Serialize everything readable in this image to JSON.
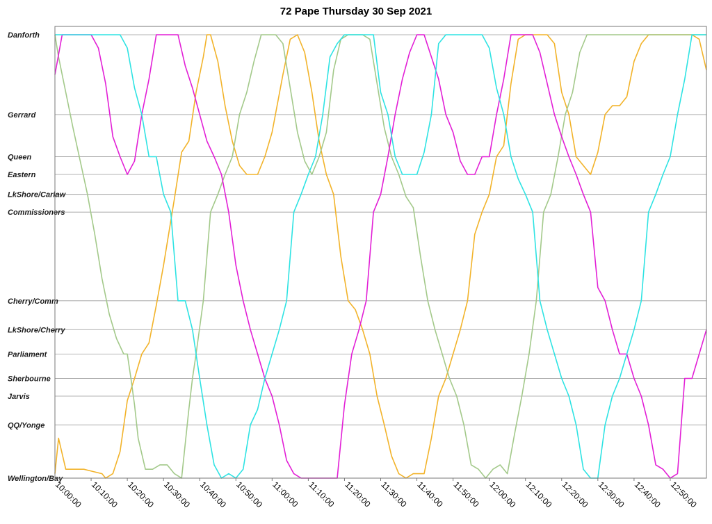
{
  "chart_data": {
    "type": "line",
    "title": "72 Pape Thursday 30 Sep 2021",
    "xlabel": "",
    "ylabel": "",
    "x_range_minutes_since_10": [
      0,
      180
    ],
    "x_ticks": [
      "10:00:00",
      "10:10:00",
      "10:20:00",
      "10:30:00",
      "10:40:00",
      "10:50:00",
      "11:00:00",
      "11:10:00",
      "11:20:00",
      "11:30:00",
      "11:40:00",
      "11:50:00",
      "12:00:00",
      "12:10:00",
      "12:20:00",
      "12:30:00",
      "12:40:00",
      "12:50:00"
    ],
    "stops": [
      {
        "name": "Danforth",
        "km": 0.0
      },
      {
        "name": "Gerrard",
        "km": 1.8
      },
      {
        "name": "Queen",
        "km": 2.75
      },
      {
        "name": "Eastern",
        "km": 3.15
      },
      {
        "name": "LkShore/Carlaw",
        "km": 3.6
      },
      {
        "name": "Commissioners",
        "km": 4.0
      },
      {
        "name": "Cherry/Comm",
        "km": 6.0
      },
      {
        "name": "LkShore/Cherry",
        "km": 6.65
      },
      {
        "name": "Parliament",
        "km": 7.2
      },
      {
        "name": "Sherbourne",
        "km": 7.75
      },
      {
        "name": "Jarvis",
        "km": 8.15
      },
      {
        "name": "QQ/Yonge",
        "km": 8.8
      },
      {
        "name": "Wellington/Bay",
        "km": 10.0
      }
    ],
    "grid": true,
    "legend": "none",
    "series": [
      {
        "color": "#f2b32a",
        "x": [
          "10:00",
          "10:01",
          "10:03",
          "10:08",
          "10:13",
          "10:14",
          "10:16",
          "10:18",
          "10:20",
          "10:22",
          "10:24",
          "10:26",
          "10:28",
          "10:30",
          "10:32",
          "10:33",
          "10:35",
          "10:37",
          "10:39",
          "10:41",
          "10:42",
          "10:43",
          "10:45",
          "10:47",
          "10:49",
          "10:51",
          "10:53",
          "10:56",
          "10:58",
          "11:00",
          "11:03",
          "11:05",
          "11:07",
          "11:09",
          "11:11",
          "11:13",
          "11:15",
          "11:17",
          "11:19",
          "11:21",
          "11:23",
          "11:25",
          "11:27",
          "11:29",
          "11:31",
          "11:33",
          "11:35",
          "11:37",
          "11:39",
          "11:42",
          "11:44",
          "11:46",
          "11:48",
          "11:50",
          "11:52",
          "11:54",
          "11:56",
          "11:58",
          "12:00",
          "12:02",
          "12:04",
          "12:06",
          "12:08",
          "12:10",
          "12:12",
          "12:14",
          "12:16",
          "12:18",
          "12:20",
          "12:22",
          "12:24",
          "12:26",
          "12:28",
          "12:30",
          "12:32",
          "12:34",
          "12:36",
          "12:38",
          "12:40",
          "12:42",
          "12:44",
          "12:46",
          "12:48",
          "12:50",
          "12:52",
          "12:54",
          "12:56",
          "12:58",
          "13:00"
        ],
        "y": [
          "Wellington/Bay -0.1",
          "QQ/Yonge +0.3",
          "Wellington/Bay -0.2",
          "Wellington/Bay -0.2",
          "Wellington/Bay -0.1",
          "Wellington/Bay",
          "Wellington/Bay -0.1",
          "QQ/Yonge +0.6",
          "Jarvis +0.1",
          "Sherbourne",
          "Parliament",
          "LkShore/Cherry +0.3",
          "Cherry/Comm +0.1",
          "Commissioners +1.2",
          "Commissioners +0.2",
          "LkShore/Carlaw +0.1",
          "Eastern -0.5",
          "Gerrard +0.6",
          "Gerrard -0.5",
          "Danforth +0.5",
          "Danforth",
          "Danforth",
          "Danforth +0.6",
          "Gerrard -0.2",
          "Gerrard +0.6",
          "Queen +0.2",
          "Eastern",
          "Eastern",
          "Queen",
          "Gerrard +0.4",
          "Danforth +0.9",
          "Danforth +0.1",
          "Danforth",
          "Danforth +0.4",
          "Gerrard -0.5",
          "Gerrard +0.6",
          "Queen +0.4",
          "LkShore/Carlaw",
          "Commissioners +1.0",
          "Cherry/Comm",
          "Cherry/Comm +0.2",
          "LkShore/Cherry",
          "Parliament",
          "Jarvis",
          "QQ/Yonge",
          "Wellington/Bay -0.5",
          "Wellington/Bay -0.1",
          "Wellington/Bay",
          "Wellington/Bay -0.1",
          "Wellington/Bay -0.1",
          "QQ/Yonge +0.3",
          "Jarvis",
          "Sherbourne",
          "Parliament",
          "LkShore/Cherry",
          "Cherry/Comm",
          "Commissioners +0.5",
          "Commissioners",
          "LkShore/Carlaw",
          "Queen",
          "Gerrard +0.7",
          "Gerrard -0.7",
          "Danforth +0.1",
          "Danforth",
          "Danforth",
          "Danforth",
          "Danforth",
          "Danforth +0.2",
          "Gerrard -0.5",
          "Gerrard",
          "Queen",
          "Queen +0.2",
          "Eastern",
          "Queen -0.1",
          "Gerrard",
          "Gerrard -0.2",
          "Gerrard -0.2",
          "Gerrard -0.4",
          "Danforth +0.6",
          "Danforth +0.2",
          "Danforth",
          "Danforth",
          "Danforth",
          "Danforth",
          "Danforth",
          "Danforth",
          "Danforth",
          "Danforth +0.1",
          "Danforth +0.8"
        ]
      },
      {
        "color": "#a3c98a",
        "x": [
          "10:00",
          "10:01",
          "10:03",
          "10:05",
          "10:07",
          "10:09",
          "10:11",
          "10:13",
          "10:15",
          "10:17",
          "10:19",
          "10:20",
          "10:21",
          "10:22",
          "10:23",
          "10:25",
          "10:27",
          "10:29",
          "10:31",
          "10:33",
          "10:35",
          "10:37",
          "10:38",
          "10:39",
          "10:41",
          "10:43",
          "10:45",
          "10:47",
          "10:49",
          "10:51",
          "10:53",
          "10:55",
          "10:57",
          "10:59",
          "11:01",
          "11:03",
          "11:05",
          "11:07",
          "11:09",
          "11:11",
          "11:13",
          "11:15",
          "11:17",
          "11:19",
          "11:21",
          "11:23",
          "11:25",
          "11:27",
          "11:29",
          "11:31",
          "11:33",
          "11:35",
          "11:37",
          "11:39",
          "11:41",
          "11:43",
          "11:45",
          "11:47",
          "11:49",
          "11:51",
          "11:53",
          "11:55",
          "11:57",
          "11:59",
          "12:01",
          "12:03",
          "12:05",
          "12:07",
          "12:09",
          "12:11",
          "12:13",
          "12:15",
          "12:17",
          "12:19",
          "12:21",
          "12:23",
          "12:25",
          "12:27",
          "12:29",
          "12:31",
          "12:33",
          "12:35",
          "12:37",
          "12:39",
          "12:41",
          "12:43",
          "12:45",
          "12:47",
          "12:49",
          "12:51",
          "12:53",
          "12:55",
          "12:57",
          "13:00"
        ],
        "y": [
          "Danforth",
          "Danforth +0.5",
          "Gerrard -0.5",
          "Gerrard +0.3",
          "Queen +0.1",
          "LkShore/Carlaw",
          "Commissioners +0.5",
          "Cherry/Comm -0.5",
          "Cherry/Comm +0.3",
          "LkShore/Cherry +0.2",
          "Parliament",
          "Parliament",
          "Sherbourne",
          "Jarvis +0.2",
          "QQ/Yonge +0.3",
          "Wellington/Bay -0.2",
          "Wellington/Bay -0.2",
          "Wellington/Bay -0.3",
          "Wellington/Bay -0.3",
          "Wellington/Bay -0.1",
          "Wellington/Bay",
          "Jarvis +0.3",
          "Sherbourne",
          "Parliament",
          "Cherry/Comm",
          "Commissioners",
          "LkShore/Carlaw",
          "Eastern",
          "Queen",
          "Gerrard",
          "Gerrard -0.5",
          "Danforth +0.6",
          "Danforth",
          "Danforth",
          "Danforth",
          "Danforth +0.2",
          "Gerrard -0.6",
          "Gerrard +0.4",
          "Queen +0.1",
          "Eastern",
          "Queen",
          "Gerrard +0.4",
          "Danforth +0.8",
          "Danforth +0.1",
          "Danforth",
          "Danforth",
          "Danforth",
          "Danforth +0.1",
          "Gerrard -0.7",
          "Gerrard +0.3",
          "Queen",
          "Eastern",
          "Eastern +0.5",
          "LkShore/Carlaw +0.3",
          "Commissioners +1.0",
          "Cherry/Comm",
          "LkShore/Cherry",
          "Parliament",
          "Sherbourne",
          "Jarvis",
          "QQ/Yonge",
          "Wellington/Bay -0.3",
          "Wellington/Bay -0.2",
          "Wellington/Bay",
          "Wellington/Bay -0.2",
          "Wellington/Bay -0.3",
          "Wellington/Bay -0.1",
          "QQ/Yonge +0.2",
          "Jarvis",
          "Parliament",
          "Cherry/Comm",
          "Commissioners",
          "LkShore/Carlaw",
          "Queen",
          "Gerrard",
          "Gerrard -0.5",
          "Danforth +0.4",
          "Danforth",
          "Danforth",
          "Danforth",
          "Danforth",
          "Danforth",
          "Danforth",
          "Danforth",
          "Danforth",
          "Danforth",
          "Danforth",
          "Danforth",
          "Danforth",
          "Danforth",
          "Danforth",
          "Danforth",
          "Danforth",
          "Danforth"
        ]
      },
      {
        "color": "#e21fd6",
        "x": [
          "10:00",
          "10:02",
          "10:04",
          "10:06",
          "10:08",
          "10:10",
          "10:12",
          "10:14",
          "10:16",
          "10:18",
          "10:20",
          "10:22",
          "10:24",
          "10:26",
          "10:28",
          "10:30",
          "10:32",
          "10:34",
          "10:36",
          "10:38",
          "10:40",
          "10:42",
          "10:44",
          "10:46",
          "10:48",
          "10:50",
          "10:52",
          "10:54",
          "10:56",
          "10:58",
          "11:00",
          "11:02",
          "11:04",
          "11:06",
          "11:08",
          "11:10",
          "11:12",
          "11:14",
          "11:16",
          "11:18",
          "11:20",
          "11:22",
          "11:24",
          "11:26",
          "11:28",
          "11:30",
          "11:32",
          "11:34",
          "11:36",
          "11:38",
          "11:40",
          "11:42",
          "11:44",
          "11:46",
          "11:48",
          "11:50",
          "11:52",
          "11:54",
          "11:56",
          "11:58",
          "12:00",
          "12:02",
          "12:04",
          "12:06",
          "12:08",
          "12:10",
          "12:12",
          "12:14",
          "12:16",
          "12:18",
          "12:20",
          "12:22",
          "12:24",
          "12:26",
          "12:28",
          "12:30",
          "12:32",
          "12:34",
          "12:36",
          "12:38",
          "12:40",
          "12:42",
          "12:44",
          "12:46",
          "12:48",
          "12:50",
          "12:52",
          "12:54",
          "12:56",
          "12:58",
          "13:00"
        ],
        "y": [
          "Danforth +0.9",
          "Danforth",
          "Danforth",
          "Danforth",
          "Danforth",
          "Danforth",
          "Danforth +0.3",
          "Gerrard -0.7",
          "Gerrard +0.5",
          "Queen",
          "Eastern",
          "Queen +0.1",
          "Gerrard",
          "Gerrard -0.8",
          "Danforth",
          "Danforth",
          "Danforth",
          "Danforth",
          "Danforth +0.7",
          "Gerrard -0.6",
          "Gerrard",
          "Gerrard +0.6",
          "Queen",
          "Eastern",
          "Commissioners",
          "Cherry/Comm -0.8",
          "Cherry/Comm",
          "LkShore/Cherry",
          "Parliament",
          "Sherbourne",
          "Jarvis",
          "QQ/Yonge",
          "Wellington/Bay -0.4",
          "Wellington/Bay -0.1",
          "Wellington/Bay",
          "Wellington/Bay",
          "Wellington/Bay",
          "Wellington/Bay",
          "Wellington/Bay",
          "Wellington/Bay",
          "Sherbourne +0.6",
          "Parliament",
          "LkShore/Cherry",
          "Cherry/Comm",
          "Commissioners",
          "LkShore/Carlaw",
          "Queen",
          "Gerrard",
          "Gerrard -0.8",
          "Danforth +0.4",
          "Danforth",
          "Danforth",
          "Danforth +0.5",
          "Gerrard -0.8",
          "Gerrard",
          "Gerrard +0.4",
          "Queen +0.1",
          "Eastern",
          "Eastern",
          "Queen",
          "Queen",
          "Gerrard",
          "Gerrard -0.8",
          "Danforth",
          "Danforth",
          "Danforth",
          "Danforth",
          "Danforth +0.4",
          "Gerrard -0.7",
          "Gerrard",
          "Gerrard +0.5",
          "Queen",
          "Eastern",
          "LkShore/Carlaw",
          "Commissioners",
          "Cherry/Comm -0.3",
          "Cherry/Comm",
          "LkShore/Cherry",
          "Parliament",
          "Parliament",
          "Sherbourne",
          "Jarvis",
          "QQ/Yonge",
          "Wellington/Bay -0.3",
          "Wellington/Bay -0.2",
          "Wellington/Bay",
          "Wellington/Bay -0.1",
          "Sherbourne",
          "Sherbourne",
          "Parliament",
          "LkShore/Cherry"
        ]
      },
      {
        "color": "#2ee3e3",
        "x": [
          "10:00",
          "10:02",
          "10:04",
          "10:06",
          "10:08",
          "10:10",
          "10:12",
          "10:14",
          "10:16",
          "10:18",
          "10:20",
          "10:22",
          "10:24",
          "10:26",
          "10:28",
          "10:30",
          "10:32",
          "10:34",
          "10:36",
          "10:38",
          "10:40",
          "10:42",
          "10:44",
          "10:46",
          "10:48",
          "10:50",
          "10:52",
          "10:54",
          "10:56",
          "10:58",
          "11:00",
          "11:02",
          "11:04",
          "11:06",
          "11:08",
          "11:10",
          "11:12",
          "11:14",
          "11:16",
          "11:18",
          "11:20",
          "11:22",
          "11:24",
          "11:26",
          "11:28",
          "11:30",
          "11:32",
          "11:34",
          "11:36",
          "11:38",
          "11:40",
          "11:42",
          "11:44",
          "11:46",
          "11:48",
          "11:50",
          "11:52",
          "11:54",
          "11:56",
          "11:58",
          "12:00",
          "12:02",
          "12:04",
          "12:06",
          "12:08",
          "12:10",
          "12:12",
          "12:14",
          "12:16",
          "12:18",
          "12:20",
          "12:22",
          "12:24",
          "12:26",
          "12:28",
          "12:30",
          "12:32",
          "12:34",
          "12:36",
          "12:38",
          "12:40",
          "12:42",
          "12:44",
          "12:46",
          "12:48",
          "12:50",
          "12:52",
          "12:54",
          "12:56",
          "12:58",
          "13:00"
        ],
        "y": [
          "Danforth",
          "Danforth",
          "Danforth",
          "Danforth",
          "Danforth",
          "Danforth",
          "Danforth",
          "Danforth",
          "Danforth",
          "Danforth",
          "Danforth +0.3",
          "Gerrard -0.6",
          "Gerrard",
          "Queen",
          "Queen",
          "LkShore/Carlaw",
          "Commissioners",
          "Cherry/Comm",
          "Cherry/Comm",
          "LkShore/Cherry",
          "Sherbourne",
          "QQ/Yonge",
          "Wellington/Bay -0.3",
          "Wellington/Bay",
          "Wellington/Bay -0.1",
          "Wellington/Bay",
          "Wellington/Bay -0.2",
          "QQ/Yonge",
          "Jarvis +0.3",
          "Sherbourne",
          "Parliament",
          "LkShore/Cherry",
          "Cherry/Comm",
          "Commissioners",
          "LkShore/Carlaw",
          "Eastern",
          "Queen",
          "Gerrard",
          "Danforth +0.5",
          "Danforth +0.2",
          "Danforth",
          "Danforth",
          "Danforth",
          "Danforth",
          "Danforth",
          "Gerrard -0.5",
          "Gerrard",
          "Queen",
          "Eastern",
          "Eastern",
          "Eastern",
          "Queen -0.1",
          "Gerrard",
          "Danforth +0.2",
          "Danforth",
          "Danforth",
          "Danforth",
          "Danforth",
          "Danforth",
          "Danforth",
          "Danforth +0.3",
          "Gerrard -0.6",
          "Gerrard",
          "Queen",
          "Queen +0.5",
          "LkShore/Carlaw",
          "Commissioners",
          "Cherry/Comm",
          "LkShore/Cherry",
          "Parliament",
          "Sherbourne",
          "Jarvis",
          "QQ/Yonge",
          "Wellington/Bay -0.2",
          "Wellington/Bay",
          "Wellington/Bay",
          "QQ/Yonge",
          "Jarvis",
          "Sherbourne",
          "Parliament",
          "LkShore/Cherry",
          "Cherry/Comm",
          "Commissioners",
          "LkShore/Carlaw",
          "Eastern",
          "Queen",
          "Gerrard",
          "Gerrard -0.8",
          "Danforth",
          "Danforth",
          "Danforth"
        ]
      }
    ]
  }
}
